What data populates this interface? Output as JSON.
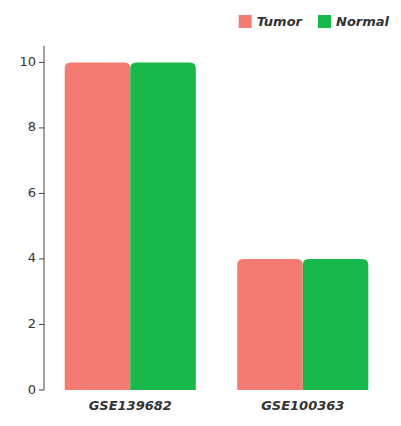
{
  "chart_data": {
    "type": "bar",
    "categories": [
      "GSE139682",
      "GSE100363"
    ],
    "series": [
      {
        "name": "Tumor",
        "color": "#F47B72",
        "values": [
          10,
          4
        ]
      },
      {
        "name": "Normal",
        "color": "#18B84A",
        "values": [
          10,
          4
        ]
      }
    ],
    "ylim": [
      0,
      10.5
    ],
    "yticks": [
      0,
      2,
      4,
      6,
      8,
      10
    ],
    "grid": false,
    "legend": "upper right"
  }
}
